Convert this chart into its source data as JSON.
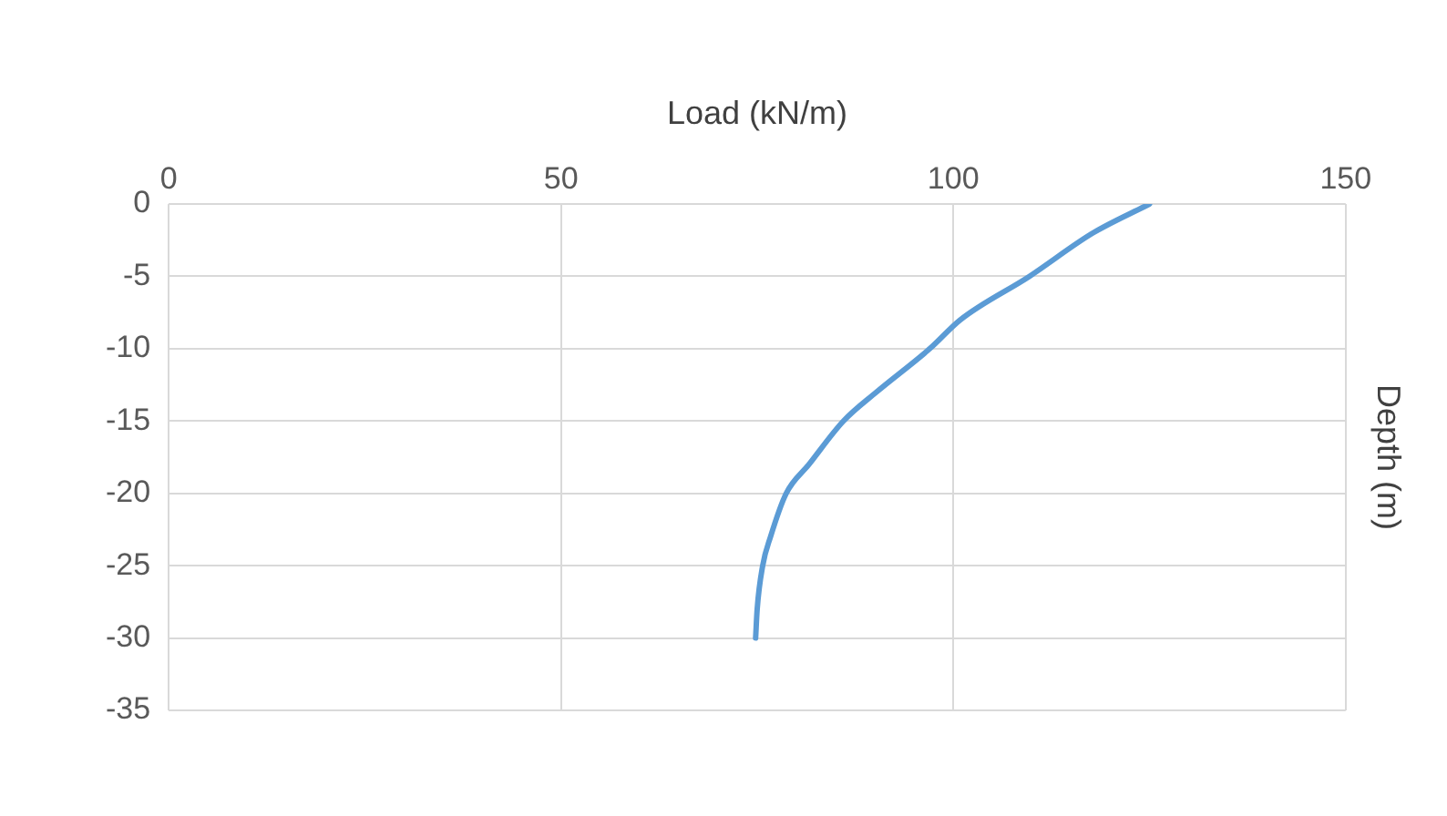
{
  "chart_data": {
    "type": "line",
    "xlabel": "Load (kN/m)",
    "ylabel": "Depth (m)",
    "xlim": [
      0,
      150
    ],
    "xticks": [
      0,
      50,
      100,
      150
    ],
    "ylim": [
      -35,
      0
    ],
    "yticks": [
      -35,
      -30,
      -25,
      -20,
      -15,
      -10,
      -5,
      0
    ],
    "grid": true,
    "legend": false,
    "marker": "none",
    "line_style": "solid",
    "series": [
      {
        "color": "#5b9bd5",
        "x": [
          125,
          117.8,
          109.7,
          100.9,
          97,
          90.2,
          86,
          81.6,
          78.7,
          76.7,
          75.7,
          75,
          74.8
        ],
        "values": [
          0,
          -2,
          -5,
          -8,
          -10,
          -13,
          -15,
          -18,
          -20,
          -23,
          -25,
          -28,
          -30
        ]
      }
    ]
  }
}
